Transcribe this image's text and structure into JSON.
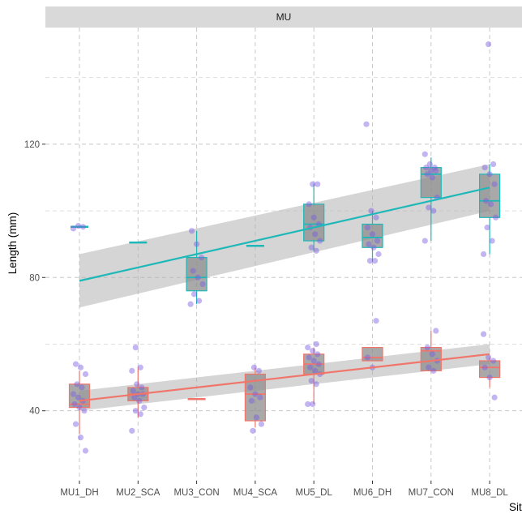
{
  "facet": {
    "label": "MU"
  },
  "chart_data": {
    "type": "box+scatter+regression",
    "facet_label": "MU",
    "xlabel": "Site",
    "ylabel": "Length (mm)",
    "categories": [
      "MU1_DH",
      "MU2_SCA",
      "MU3_CON",
      "MU4_SCA",
      "MU5_DL",
      "MU6_DH",
      "MU7_CON",
      "MU8_DL"
    ],
    "ylim": [
      19,
      155
    ],
    "yticks": [
      40,
      80,
      120
    ],
    "grid": true,
    "colors": {
      "series_teal": "#1fb8b8",
      "series_red": "#f0756a",
      "points": "#7b5ae0",
      "ribbon": "#b3b3b3",
      "box_fill": "#8c8c8c",
      "strip": "#d9d9d9"
    },
    "series": [
      {
        "color": "#1fb8b8",
        "boxes": [
          {
            "q1": 94.8,
            "median": 95.2,
            "q3": 95.6,
            "min": 94.8,
            "max": 95.6
          },
          {
            "q1": 90.3,
            "median": 90.5,
            "q3": 90.7,
            "min": 90.3,
            "max": 90.7
          },
          {
            "q1": 76,
            "median": 80,
            "q3": 86,
            "min": 72,
            "max": 94
          },
          {
            "q1": 89.3,
            "median": 89.5,
            "q3": 89.7,
            "min": 89.3,
            "max": 89.7
          },
          {
            "q1": 91,
            "median": 96,
            "q3": 102,
            "min": 88,
            "max": 108
          },
          {
            "q1": 89,
            "median": 92,
            "q3": 96,
            "min": 85,
            "max": 100
          },
          {
            "q1": 104,
            "median": 111,
            "q3": 113,
            "min": 91,
            "max": 116
          },
          {
            "q1": 98,
            "median": 103,
            "q3": 111,
            "min": 87,
            "max": 114
          }
        ],
        "trend": {
          "start": 79,
          "end": 107,
          "ribbon_start": [
            71,
            87
          ],
          "ribbon_end": [
            100,
            114
          ]
        },
        "points": [
          [
            1,
            94.7
          ],
          [
            1,
            95.5
          ],
          [
            1,
            95.2
          ],
          [
            3,
            94
          ],
          [
            3,
            90
          ],
          [
            3,
            86
          ],
          [
            3,
            82
          ],
          [
            3,
            80
          ],
          [
            3,
            78
          ],
          [
            3,
            75
          ],
          [
            3,
            73
          ],
          [
            3,
            72
          ],
          [
            5,
            108
          ],
          [
            5,
            108
          ],
          [
            5,
            102
          ],
          [
            5,
            98
          ],
          [
            5,
            96
          ],
          [
            5,
            95
          ],
          [
            5,
            93
          ],
          [
            5,
            91
          ],
          [
            5,
            89
          ],
          [
            5,
            88
          ],
          [
            6,
            126
          ],
          [
            6,
            100
          ],
          [
            6,
            98
          ],
          [
            6,
            95
          ],
          [
            6,
            93
          ],
          [
            6,
            91
          ],
          [
            6,
            90
          ],
          [
            6,
            89
          ],
          [
            6,
            87
          ],
          [
            6,
            85
          ],
          [
            6,
            85
          ],
          [
            7,
            117
          ],
          [
            7,
            114
          ],
          [
            7,
            113
          ],
          [
            7,
            113
          ],
          [
            7,
            112
          ],
          [
            7,
            112
          ],
          [
            7,
            111
          ],
          [
            7,
            110
          ],
          [
            7,
            104
          ],
          [
            7,
            101
          ],
          [
            7,
            100
          ],
          [
            7,
            91
          ],
          [
            8,
            150
          ],
          [
            8,
            114
          ],
          [
            8,
            113
          ],
          [
            8,
            111
          ],
          [
            8,
            108
          ],
          [
            8,
            103
          ],
          [
            8,
            102
          ],
          [
            8,
            98
          ],
          [
            8,
            95
          ],
          [
            8,
            91
          ],
          [
            8,
            87
          ]
        ]
      },
      {
        "color": "#f0756a",
        "boxes": [
          {
            "q1": 41,
            "median": 42,
            "q3": 48,
            "min": 33,
            "max": 52
          },
          {
            "q1": 43,
            "median": 45,
            "q3": 47,
            "min": 38,
            "max": 53
          },
          {
            "q1": 43.3,
            "median": 43.5,
            "q3": 43.7,
            "min": 43.3,
            "max": 43.7
          },
          {
            "q1": 37,
            "median": 45,
            "q3": 51,
            "min": 35,
            "max": 53
          },
          {
            "q1": 51,
            "median": 54,
            "q3": 57,
            "min": 42,
            "max": 59
          },
          {
            "q1": 55,
            "median": 56,
            "q3": 59,
            "min": 55,
            "max": 59
          },
          {
            "q1": 52,
            "median": 58,
            "q3": 59,
            "min": 52,
            "max": 64
          },
          {
            "q1": 50,
            "median": 53,
            "q3": 55,
            "min": 47,
            "max": 56
          }
        ],
        "trend": {
          "start": 43,
          "end": 57,
          "ribbon_start": [
            40,
            46
          ],
          "ribbon_end": [
            54,
            60
          ]
        },
        "points": [
          [
            1,
            54
          ],
          [
            1,
            53
          ],
          [
            1,
            51
          ],
          [
            1,
            48
          ],
          [
            1,
            47
          ],
          [
            1,
            45
          ],
          [
            1,
            44
          ],
          [
            1,
            43
          ],
          [
            1,
            42
          ],
          [
            1,
            41
          ],
          [
            1,
            40
          ],
          [
            1,
            36
          ],
          [
            1,
            32
          ],
          [
            1,
            28
          ],
          [
            2,
            59
          ],
          [
            2,
            53
          ],
          [
            2,
            52
          ],
          [
            2,
            48
          ],
          [
            2,
            47
          ],
          [
            2,
            46
          ],
          [
            2,
            45
          ],
          [
            2,
            45
          ],
          [
            2,
            44
          ],
          [
            2,
            43
          ],
          [
            2,
            41
          ],
          [
            2,
            40
          ],
          [
            2,
            39
          ],
          [
            2,
            34
          ],
          [
            4,
            53
          ],
          [
            4,
            52
          ],
          [
            4,
            47
          ],
          [
            4,
            45
          ],
          [
            4,
            44
          ],
          [
            4,
            43
          ],
          [
            4,
            38
          ],
          [
            4,
            36
          ],
          [
            4,
            34
          ],
          [
            5,
            60
          ],
          [
            5,
            59
          ],
          [
            5,
            58
          ],
          [
            5,
            57
          ],
          [
            5,
            56
          ],
          [
            5,
            55
          ],
          [
            5,
            54
          ],
          [
            5,
            53
          ],
          [
            5,
            52
          ],
          [
            5,
            51
          ],
          [
            5,
            49
          ],
          [
            5,
            48
          ],
          [
            5,
            42
          ],
          [
            5,
            42
          ],
          [
            6,
            67
          ],
          [
            6,
            56
          ],
          [
            6,
            53
          ],
          [
            7,
            64
          ],
          [
            7,
            59
          ],
          [
            7,
            57
          ],
          [
            7,
            55
          ],
          [
            7,
            53
          ],
          [
            7,
            52
          ],
          [
            8,
            63
          ],
          [
            8,
            56
          ],
          [
            8,
            55
          ],
          [
            8,
            53
          ],
          [
            8,
            50
          ],
          [
            8,
            44
          ]
        ]
      }
    ]
  }
}
